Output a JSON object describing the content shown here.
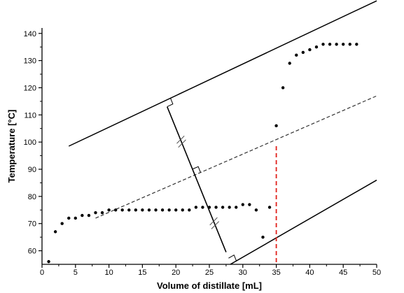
{
  "chart_data": {
    "type": "scatter",
    "title": "",
    "xlabel": "Volume of distillate [mL]",
    "ylabel": "Temperature [°C]",
    "xlim": [
      0,
      50
    ],
    "ylim": [
      55,
      142
    ],
    "xticks": [
      0,
      5,
      10,
      15,
      20,
      25,
      30,
      35,
      40,
      45,
      50
    ],
    "yticks": [
      60,
      70,
      80,
      90,
      100,
      110,
      120,
      130,
      140
    ],
    "grid": false,
    "series": [
      {
        "marker": "dot",
        "color": "#000000",
        "points": [
          [
            1,
            56
          ],
          [
            2,
            67
          ],
          [
            3,
            70
          ],
          [
            4,
            72
          ],
          [
            5,
            72
          ],
          [
            6,
            73
          ],
          [
            7,
            73
          ],
          [
            8,
            74
          ],
          [
            9,
            74
          ],
          [
            10,
            75
          ],
          [
            11,
            75
          ],
          [
            12,
            75
          ],
          [
            13,
            75
          ],
          [
            14,
            75
          ],
          [
            15,
            75
          ],
          [
            16,
            75
          ],
          [
            17,
            75
          ],
          [
            18,
            75
          ],
          [
            19,
            75
          ],
          [
            20,
            75
          ],
          [
            21,
            75
          ],
          [
            22,
            75
          ],
          [
            23,
            76
          ],
          [
            24,
            76
          ],
          [
            25,
            76
          ],
          [
            26,
            76
          ],
          [
            27,
            76
          ],
          [
            28,
            76
          ],
          [
            29,
            76
          ],
          [
            30,
            77
          ],
          [
            31,
            77
          ],
          [
            32,
            75
          ],
          [
            33,
            65
          ],
          [
            34,
            76
          ],
          [
            35,
            106
          ],
          [
            36,
            120
          ],
          [
            37,
            129
          ],
          [
            38,
            132
          ],
          [
            39,
            133
          ],
          [
            40,
            134
          ],
          [
            41,
            135
          ],
          [
            42,
            136
          ],
          [
            43,
            136
          ],
          [
            44,
            136
          ],
          [
            45,
            136
          ],
          [
            46,
            136
          ],
          [
            47,
            136
          ]
        ]
      }
    ],
    "construction_lines": {
      "upper_tangent": {
        "from": [
          4,
          98.5
        ],
        "to": [
          50,
          152
        ],
        "style": "solid",
        "color": "#000000"
      },
      "lower_tangent": {
        "from": [
          22.5,
          47
        ],
        "to": [
          50,
          86
        ],
        "style": "solid",
        "color": "#000000"
      },
      "midline": {
        "from": [
          8,
          72
        ],
        "to": [
          50,
          117
        ],
        "style": "dashed",
        "color": "#333333"
      },
      "perpendicular": {
        "from": [
          18.7,
          113
        ],
        "to": [
          27.5,
          59.5
        ],
        "style": "solid",
        "color": "#000000"
      },
      "boiling_point_marker": {
        "from": [
          35,
          98.5
        ],
        "to": [
          35,
          55
        ],
        "style": "dashed",
        "color": "#e0201b"
      }
    }
  }
}
